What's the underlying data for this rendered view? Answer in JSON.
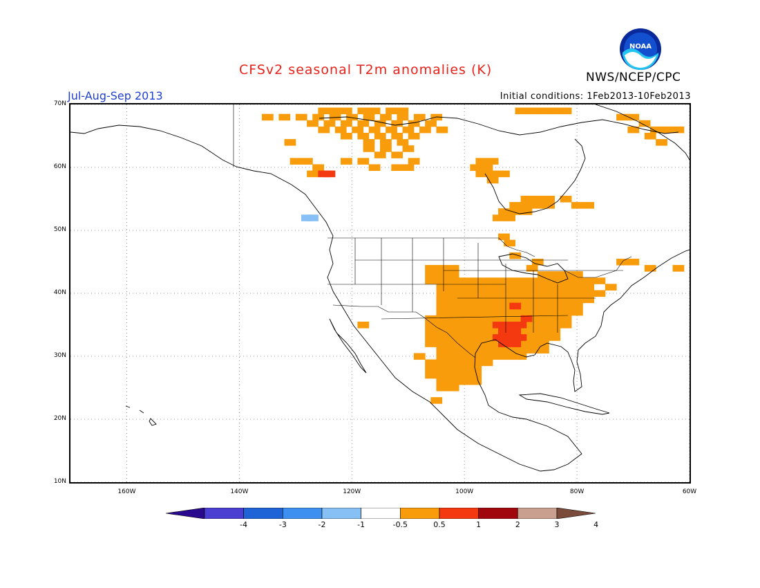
{
  "header": {
    "title": "CFSv2 seasonal T2m anomalies (K)",
    "agency": "NWS/NCEP/CPC",
    "period": "Jul-Aug-Sep 2013",
    "initial_conditions": "Initial conditions: 1Feb2013-10Feb2013",
    "logo_text": "NOAA"
  },
  "map": {
    "region": "North America",
    "lat_range": [
      10,
      70
    ],
    "lon_range": [
      -170,
      -60
    ],
    "lat_ticks": [
      {
        "value": 70,
        "label": "70N"
      },
      {
        "value": 60,
        "label": "60N"
      },
      {
        "value": 50,
        "label": "50N"
      },
      {
        "value": 40,
        "label": "40N"
      },
      {
        "value": 30,
        "label": "30N"
      },
      {
        "value": 20,
        "label": "20N"
      },
      {
        "value": 10,
        "label": "10N"
      }
    ],
    "lon_ticks": [
      {
        "value": -160,
        "label": "160W"
      },
      {
        "value": -140,
        "label": "140W"
      },
      {
        "value": -120,
        "label": "120W"
      },
      {
        "value": -100,
        "label": "100W"
      },
      {
        "value": -80,
        "label": "80W"
      },
      {
        "value": -60,
        "label": "60W"
      }
    ],
    "grid": "dotted"
  },
  "colorbar": {
    "labels": [
      "-4",
      "-3",
      "-2",
      "-1",
      "-0.5",
      "0.5",
      "1",
      "2",
      "3",
      "4"
    ],
    "colors": [
      "#2a0a8c",
      "#4a3fd0",
      "#1e64d6",
      "#3d8ff0",
      "#86c0f5",
      "#ffffff",
      "#f89c0c",
      "#f4380f",
      "#a1080e",
      "#c9a090",
      "#7a4a3a"
    ]
  },
  "anomaly_regions": [
    {
      "category": "+0.5 to +1 K",
      "color": "#f89c0c",
      "area": "Northern Canada / Arctic islands",
      "cells": [
        [
          -125,
          69
        ],
        [
          -123,
          69
        ],
        [
          -121,
          69
        ],
        [
          -118,
          69
        ],
        [
          -116,
          69
        ],
        [
          -113,
          69
        ],
        [
          -111,
          69
        ],
        [
          -135,
          68
        ],
        [
          -132,
          68
        ],
        [
          -129,
          68
        ],
        [
          -126,
          68
        ],
        [
          -123,
          68
        ],
        [
          -120,
          68
        ],
        [
          -117,
          68
        ],
        [
          -114,
          68
        ],
        [
          -111,
          68
        ],
        [
          -108,
          68
        ],
        [
          -105,
          68
        ],
        [
          -127,
          67
        ],
        [
          -124,
          67
        ],
        [
          -121,
          67
        ],
        [
          -118,
          67
        ],
        [
          -115,
          67
        ],
        [
          -112,
          67
        ],
        [
          -109,
          67
        ],
        [
          -106,
          67
        ],
        [
          -125,
          66
        ],
        [
          -122,
          66
        ],
        [
          -119,
          66
        ],
        [
          -116,
          66
        ],
        [
          -113,
          66
        ],
        [
          -110,
          66
        ],
        [
          -107,
          66
        ],
        [
          -104,
          66
        ],
        [
          -121,
          65
        ],
        [
          -118,
          65
        ],
        [
          -115,
          65
        ],
        [
          -112,
          65
        ],
        [
          -109,
          65
        ],
        [
          -117,
          64
        ],
        [
          -114,
          64
        ],
        [
          -111,
          64
        ],
        [
          -117,
          63
        ],
        [
          -114,
          63
        ],
        [
          -110,
          63
        ],
        [
          -115,
          62
        ],
        [
          -112,
          62
        ],
        [
          -109,
          61
        ],
        [
          -118,
          61
        ],
        [
          -121,
          61
        ],
        [
          -130,
          61
        ],
        [
          -128,
          61
        ],
        [
          -116,
          60
        ],
        [
          -112,
          60
        ],
        [
          -110,
          60
        ],
        [
          -126,
          60
        ],
        [
          -127,
          59
        ],
        [
          -90,
          69
        ],
        [
          -88,
          69
        ],
        [
          -86,
          69
        ],
        [
          -84,
          69
        ],
        [
          -82,
          69
        ],
        [
          -72,
          68
        ],
        [
          -70,
          68
        ],
        [
          -68,
          67
        ],
        [
          -66,
          66
        ],
        [
          -64,
          66
        ],
        [
          -62,
          66
        ],
        [
          -70,
          66
        ],
        [
          -67,
          65
        ],
        [
          -65,
          64
        ],
        [
          -131,
          64
        ]
      ]
    },
    {
      "category": "+0.5 to +1 K",
      "color": "#f89c0c",
      "area": "Hudson Bay and southern Canada",
      "cells": [
        [
          -97,
          61
        ],
        [
          -95,
          61
        ],
        [
          -98,
          60
        ],
        [
          -96,
          60
        ],
        [
          -97,
          59
        ],
        [
          -95,
          59
        ],
        [
          -93,
          59
        ],
        [
          -95,
          58
        ],
        [
          -89,
          55
        ],
        [
          -87,
          55
        ],
        [
          -85,
          55
        ],
        [
          -91,
          54
        ],
        [
          -89,
          54
        ],
        [
          -87,
          54
        ],
        [
          -85,
          54
        ],
        [
          -93,
          53
        ],
        [
          -91,
          53
        ],
        [
          -89,
          53
        ],
        [
          -94,
          52
        ],
        [
          -92,
          52
        ],
        [
          -82,
          55
        ],
        [
          -80,
          54
        ],
        [
          -78,
          54
        ],
        [
          -93,
          49
        ],
        [
          -92,
          48
        ],
        [
          -72,
          45
        ],
        [
          -70,
          45
        ],
        [
          -67,
          44
        ],
        [
          -62,
          44
        ]
      ]
    },
    {
      "category": "+0.5 to +1 K",
      "color": "#f89c0c",
      "area": "Central and southern United States",
      "cells": [
        [
          -106,
          44
        ],
        [
          -104,
          44
        ],
        [
          -102,
          44
        ],
        [
          -106,
          43
        ],
        [
          -104,
          43
        ],
        [
          -102,
          43
        ],
        [
          -106,
          42
        ],
        [
          -104,
          42
        ],
        [
          -102,
          42
        ],
        [
          -100,
          42
        ],
        [
          -98,
          42
        ],
        [
          -96,
          42
        ],
        [
          -94,
          42
        ],
        [
          -92,
          42
        ],
        [
          -90,
          42
        ],
        [
          -88,
          42
        ],
        [
          -86,
          42
        ],
        [
          -84,
          42
        ],
        [
          -82,
          42
        ],
        [
          -80,
          42
        ],
        [
          -78,
          42
        ],
        [
          -76,
          42
        ],
        [
          -74,
          41
        ],
        [
          -104,
          41
        ],
        [
          -102,
          41
        ],
        [
          -100,
          41
        ],
        [
          -98,
          41
        ],
        [
          -96,
          41
        ],
        [
          -94,
          41
        ],
        [
          -92,
          41
        ],
        [
          -90,
          41
        ],
        [
          -88,
          41
        ],
        [
          -86,
          41
        ],
        [
          -84,
          41
        ],
        [
          -82,
          41
        ],
        [
          -80,
          41
        ],
        [
          -78,
          41
        ],
        [
          -104,
          40
        ],
        [
          -102,
          40
        ],
        [
          -100,
          40
        ],
        [
          -98,
          40
        ],
        [
          -96,
          40
        ],
        [
          -94,
          40
        ],
        [
          -92,
          40
        ],
        [
          -90,
          40
        ],
        [
          -88,
          40
        ],
        [
          -86,
          40
        ],
        [
          -84,
          40
        ],
        [
          -82,
          40
        ],
        [
          -80,
          40
        ],
        [
          -78,
          40
        ],
        [
          -76,
          40
        ],
        [
          -104,
          39
        ],
        [
          -102,
          39
        ],
        [
          -100,
          39
        ],
        [
          -98,
          39
        ],
        [
          -96,
          39
        ],
        [
          -94,
          39
        ],
        [
          -92,
          39
        ],
        [
          -90,
          39
        ],
        [
          -88,
          39
        ],
        [
          -86,
          39
        ],
        [
          -84,
          39
        ],
        [
          -82,
          39
        ],
        [
          -80,
          39
        ],
        [
          -78,
          39
        ],
        [
          -104,
          38
        ],
        [
          -102,
          38
        ],
        [
          -100,
          38
        ],
        [
          -98,
          38
        ],
        [
          -96,
          38
        ],
        [
          -94,
          38
        ],
        [
          -92,
          38
        ],
        [
          -90,
          38
        ],
        [
          -88,
          38
        ],
        [
          -86,
          38
        ],
        [
          -84,
          38
        ],
        [
          -82,
          38
        ],
        [
          -80,
          38
        ],
        [
          -104,
          37
        ],
        [
          -102,
          37
        ],
        [
          -100,
          37
        ],
        [
          -98,
          37
        ],
        [
          -96,
          37
        ],
        [
          -94,
          37
        ],
        [
          -92,
          37
        ],
        [
          -90,
          37
        ],
        [
          -88,
          37
        ],
        [
          -86,
          37
        ],
        [
          -84,
          37
        ],
        [
          -82,
          37
        ],
        [
          -80,
          37
        ],
        [
          -106,
          36
        ],
        [
          -104,
          36
        ],
        [
          -102,
          36
        ],
        [
          -100,
          36
        ],
        [
          -98,
          36
        ],
        [
          -96,
          36
        ],
        [
          -94,
          36
        ],
        [
          -92,
          36
        ],
        [
          -90,
          36
        ],
        [
          -88,
          36
        ],
        [
          -86,
          36
        ],
        [
          -84,
          36
        ],
        [
          -82,
          36
        ],
        [
          -106,
          35
        ],
        [
          -104,
          35
        ],
        [
          -102,
          35
        ],
        [
          -100,
          35
        ],
        [
          -98,
          35
        ],
        [
          -96,
          35
        ],
        [
          -94,
          35
        ],
        [
          -92,
          35
        ],
        [
          -90,
          35
        ],
        [
          -88,
          35
        ],
        [
          -86,
          35
        ],
        [
          -84,
          35
        ],
        [
          -82,
          35
        ],
        [
          -106,
          34
        ],
        [
          -104,
          34
        ],
        [
          -102,
          34
        ],
        [
          -100,
          34
        ],
        [
          -98,
          34
        ],
        [
          -96,
          34
        ],
        [
          -94,
          34
        ],
        [
          -92,
          34
        ],
        [
          -90,
          34
        ],
        [
          -88,
          34
        ],
        [
          -86,
          34
        ],
        [
          -84,
          34
        ],
        [
          -106,
          33
        ],
        [
          -104,
          33
        ],
        [
          -102,
          33
        ],
        [
          -100,
          33
        ],
        [
          -98,
          33
        ],
        [
          -96,
          33
        ],
        [
          -94,
          33
        ],
        [
          -92,
          33
        ],
        [
          -90,
          33
        ],
        [
          -88,
          33
        ],
        [
          -86,
          33
        ],
        [
          -84,
          33
        ],
        [
          -106,
          32
        ],
        [
          -104,
          32
        ],
        [
          -102,
          32
        ],
        [
          -100,
          32
        ],
        [
          -98,
          32
        ],
        [
          -96,
          32
        ],
        [
          -94,
          32
        ],
        [
          -92,
          32
        ],
        [
          -90,
          32
        ],
        [
          -88,
          32
        ],
        [
          -86,
          32
        ],
        [
          -104,
          31
        ],
        [
          -102,
          31
        ],
        [
          -100,
          31
        ],
        [
          -98,
          31
        ],
        [
          -96,
          31
        ],
        [
          -94,
          31
        ],
        [
          -92,
          31
        ],
        [
          -90,
          31
        ],
        [
          -88,
          31
        ],
        [
          -86,
          31
        ],
        [
          -104,
          30
        ],
        [
          -102,
          30
        ],
        [
          -100,
          30
        ],
        [
          -98,
          30
        ],
        [
          -96,
          30
        ],
        [
          -94,
          30
        ],
        [
          -92,
          30
        ],
        [
          -90,
          30
        ],
        [
          -108,
          30
        ],
        [
          -106,
          29
        ],
        [
          -104,
          29
        ],
        [
          -102,
          29
        ],
        [
          -100,
          29
        ],
        [
          -98,
          29
        ],
        [
          -96,
          29
        ],
        [
          -106,
          28
        ],
        [
          -104,
          28
        ],
        [
          -102,
          28
        ],
        [
          -100,
          28
        ],
        [
          -98,
          28
        ],
        [
          -106,
          27
        ],
        [
          -104,
          27
        ],
        [
          -102,
          27
        ],
        [
          -100,
          27
        ],
        [
          -98,
          27
        ],
        [
          -104,
          26
        ],
        [
          -102,
          26
        ],
        [
          -100,
          26
        ],
        [
          -98,
          26
        ],
        [
          -104,
          25
        ],
        [
          -102,
          25
        ],
        [
          -105,
          23
        ],
        [
          -118,
          35
        ],
        [
          -84,
          43
        ],
        [
          -86,
          43
        ],
        [
          -82,
          43
        ],
        [
          -80,
          43
        ],
        [
          -88,
          44
        ],
        [
          -87,
          45
        ],
        [
          -91,
          46
        ]
      ]
    },
    {
      "category": "+1 to +2 K",
      "color": "#f4380f",
      "area": "Lower Mississippi valley",
      "cells": [
        [
          -94,
          35
        ],
        [
          -92,
          35
        ],
        [
          -90,
          35
        ],
        [
          -93,
          34
        ],
        [
          -91,
          34
        ],
        [
          -94,
          33
        ],
        [
          -92,
          33
        ],
        [
          -90,
          33
        ],
        [
          -93,
          32
        ],
        [
          -91,
          32
        ],
        [
          -89,
          36
        ],
        [
          -91,
          38
        ],
        [
          -125,
          59
        ],
        [
          -124,
          59
        ]
      ]
    },
    {
      "category": "-1 to -0.5 K",
      "color": "#86c0f5",
      "area": "British Columbia coast",
      "cells": [
        [
          -128,
          52
        ],
        [
          -127,
          52
        ]
      ]
    }
  ]
}
